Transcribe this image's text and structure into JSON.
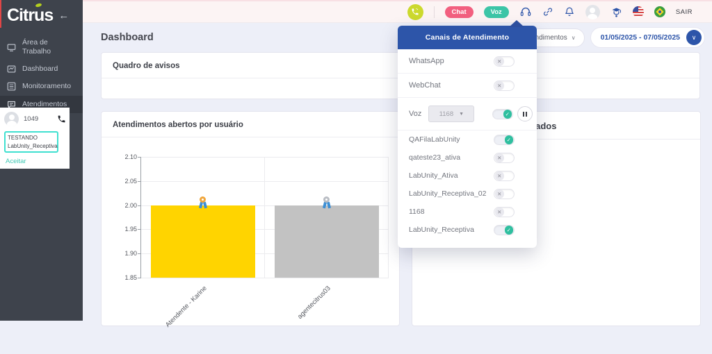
{
  "colors": {
    "accent_blue": "#2d55a9",
    "teal": "#2fbf9f",
    "chat_pink": "#f25f7f",
    "voz_teal": "#3cc5a7",
    "lime_phone": "#ccd92e",
    "sidebar_bg": "#3e434c",
    "bar_yellow": "#ffd400",
    "bar_gray": "#c2c2c2"
  },
  "app": {
    "logo": "Citrus",
    "back_arrow": "←"
  },
  "sidebar": {
    "items": [
      {
        "label": "Área de Trabalho",
        "icon": "workspace-icon",
        "active": false
      },
      {
        "label": "Dashboard",
        "icon": "dashboard-icon",
        "active": false
      },
      {
        "label": "Monitoramento",
        "icon": "monitoring-icon",
        "active": false
      },
      {
        "label": "Atendimentos",
        "icon": "chats-icon",
        "active": true
      }
    ],
    "agent_card": {
      "extension": "1049",
      "status_line1": "TESTANDO",
      "status_line2": "LabUnity_Receptiva",
      "accept_label": "Aceitar"
    }
  },
  "topbar": {
    "chat_badge": "Chat",
    "voz_badge": "Voz",
    "logout_label": "SAIR",
    "icons": [
      "phone-call-icon",
      "channels-headset-icon",
      "link-icon",
      "bell-icon",
      "avatar",
      "graduate-icon",
      "us-flag-icon",
      "br-flag-icon"
    ]
  },
  "subheader": {
    "title": "Dashboard",
    "filter_label": "Andamento dos atendimentos",
    "filter_chevron": "∨",
    "date_range": "01/05/2025 - 07/05/2025",
    "date_chevron": "∨"
  },
  "panels": {
    "notices_title": "Quadro de avisos",
    "open_chart_title": "Atendimentos abertos por usuário",
    "finished_title": "Atendimentos finalizados"
  },
  "channels_dropdown": {
    "title": "Canais de Atendimento",
    "channels": [
      {
        "label": "WhatsApp",
        "state": "off"
      },
      {
        "label": "WebChat",
        "state": "off"
      }
    ],
    "voz_row": {
      "label": "Voz",
      "select_value": "1168",
      "state": "on"
    },
    "queues": [
      {
        "label": "QAFilaLabUnity",
        "state": "on"
      },
      {
        "label": "qateste23_ativa",
        "state": "off"
      },
      {
        "label": "LabUnity_Ativa",
        "state": "off"
      },
      {
        "label": "LabUnity_Receptiva_02",
        "state": "off"
      },
      {
        "label": "1168",
        "state": "off"
      },
      {
        "label": "LabUnity_Receptiva",
        "state": "on"
      }
    ],
    "toggle_off_glyph": "✕",
    "toggle_on_glyph": "✓",
    "pause_icon": "pause-icon"
  },
  "chart_data": {
    "type": "bar",
    "title": "Atendimentos abertos por usuário",
    "categories": [
      "Atendente - Karine",
      "agentecitrus03"
    ],
    "values": [
      2.0,
      2.0
    ],
    "bar_colors": [
      "#ffd400",
      "#c2c2c2"
    ],
    "marker_colors": [
      "#f0a63c",
      "#b9bdc4"
    ],
    "ylim": [
      1.85,
      2.1
    ],
    "ytick_labels": [
      "2.10",
      "2.05",
      "2.00",
      "1.95",
      "1.90",
      "1.85"
    ],
    "grid": true,
    "legend": false,
    "xlabel": "",
    "ylabel": ""
  }
}
